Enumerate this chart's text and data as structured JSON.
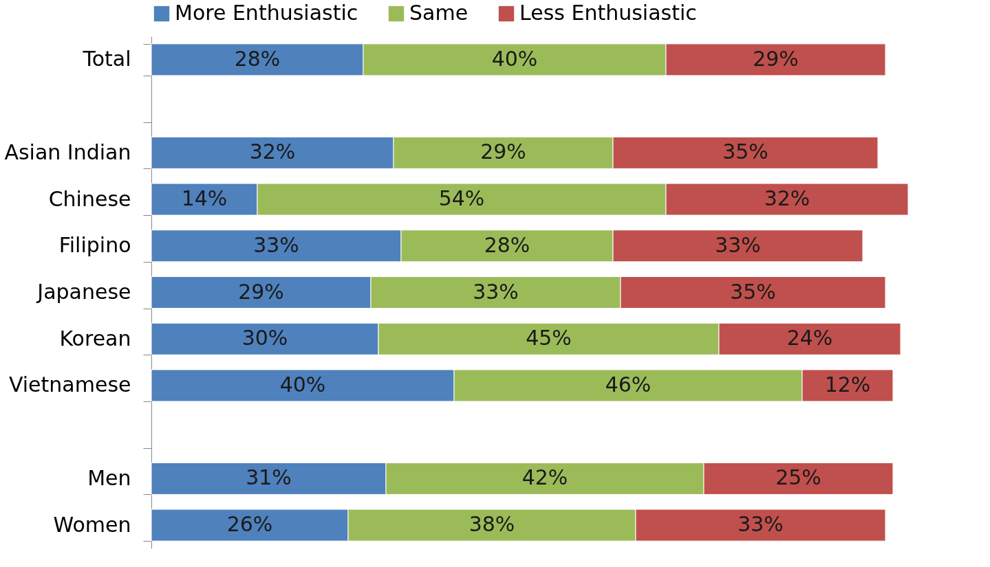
{
  "chart_data": {
    "type": "bar",
    "orientation": "horizontal",
    "stacked": true,
    "legend": "top",
    "tick_labels": "y",
    "xlim": [
      0,
      100
    ],
    "categories": [
      "Total",
      null,
      "Asian Indian",
      "Chinese",
      "Filipino",
      "Japanese",
      "Korean",
      "Vietnamese",
      null,
      "Men",
      "Women"
    ],
    "series": [
      {
        "name": "More Enthusiastic",
        "color": "#4f81bd",
        "values": [
          28,
          null,
          32,
          14,
          33,
          29,
          30,
          40,
          null,
          31,
          26
        ],
        "value_labels": [
          "28%",
          null,
          "32%",
          "14%",
          "33%",
          "29%",
          "30%",
          "40%",
          null,
          "31%",
          "26%"
        ]
      },
      {
        "name": "Same",
        "color": "#9bbb59",
        "values": [
          40,
          null,
          29,
          54,
          28,
          33,
          45,
          46,
          null,
          42,
          38
        ],
        "value_labels": [
          "40%",
          null,
          "29%",
          "54%",
          "28%",
          "33%",
          "45%",
          "46%",
          null,
          "42%",
          "38%"
        ]
      },
      {
        "name": "Less Enthusiastic",
        "color": "#c0504d",
        "values": [
          29,
          null,
          35,
          32,
          33,
          35,
          24,
          12,
          null,
          25,
          33
        ],
        "value_labels": [
          "29%",
          null,
          "35%",
          "32%",
          "33%",
          "35%",
          "24%",
          "12%",
          null,
          "25%",
          "33%"
        ]
      }
    ]
  }
}
